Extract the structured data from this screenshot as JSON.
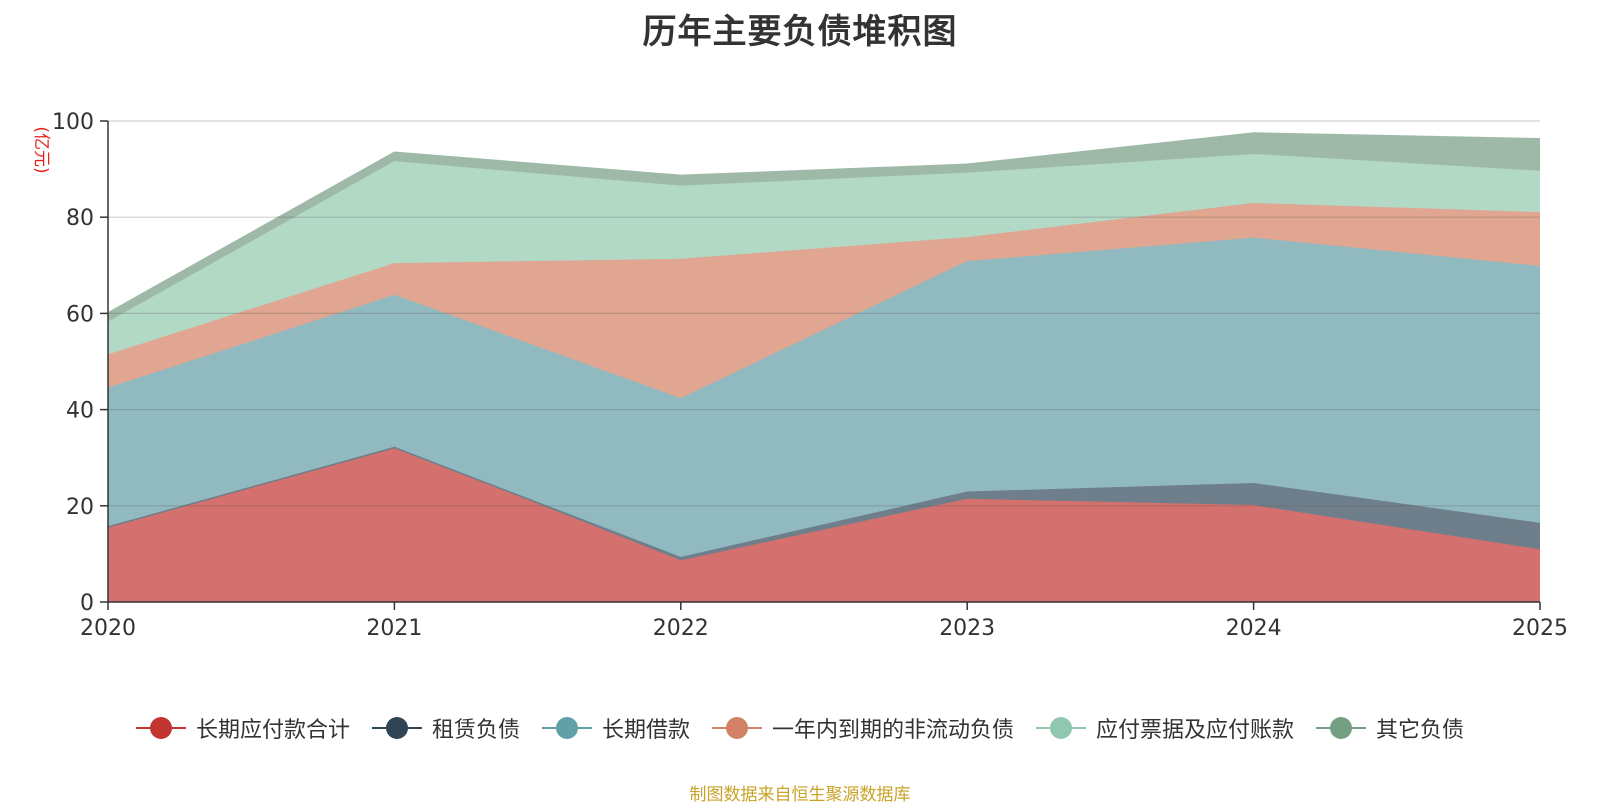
{
  "chart_data": {
    "type": "area",
    "stacked": true,
    "title": "历年主要负债堆积图",
    "unit_label": "(亿元)",
    "x": [
      "2020",
      "2021",
      "2022",
      "2023",
      "2024",
      "2025"
    ],
    "ylim": [
      0,
      100
    ],
    "yticks": [
      0,
      20,
      40,
      60,
      80,
      100
    ],
    "grid": true,
    "legend_position": "bottom",
    "series": [
      {
        "name": "长期应付款合计",
        "color": "#c23531",
        "fill": "#d4706d",
        "values": [
          15.6,
          32.1,
          8.5,
          21.3,
          20.0,
          10.8
        ]
      },
      {
        "name": "租赁负债",
        "color": "#2f4554",
        "fill": "#6e7f8b",
        "values": [
          0.0,
          0.0,
          0.7,
          1.5,
          4.6,
          5.5
        ]
      },
      {
        "name": "长期借款",
        "color": "#61a0a8",
        "fill": "#90bac0",
        "values": [
          28.8,
          31.6,
          33.0,
          47.9,
          51.0,
          53.4
        ]
      },
      {
        "name": "一年内到期的非流动负债",
        "color": "#d48265",
        "fill": "#e0a691",
        "values": [
          6.9,
          6.6,
          29.0,
          5.0,
          7.2,
          11.2
        ]
      },
      {
        "name": "应付票据及应付账款",
        "color": "#91c7ae",
        "fill": "#b2d8c6",
        "values": [
          6.8,
          21.2,
          15.2,
          13.4,
          10.2,
          8.6
        ]
      },
      {
        "name": "其它负债",
        "color": "#749f83",
        "fill": "#9eb9a7",
        "values": [
          2.0,
          2.0,
          2.3,
          1.9,
          4.5,
          6.8
        ]
      }
    ]
  },
  "source_note": "制图数据来自恒生聚源数据库"
}
